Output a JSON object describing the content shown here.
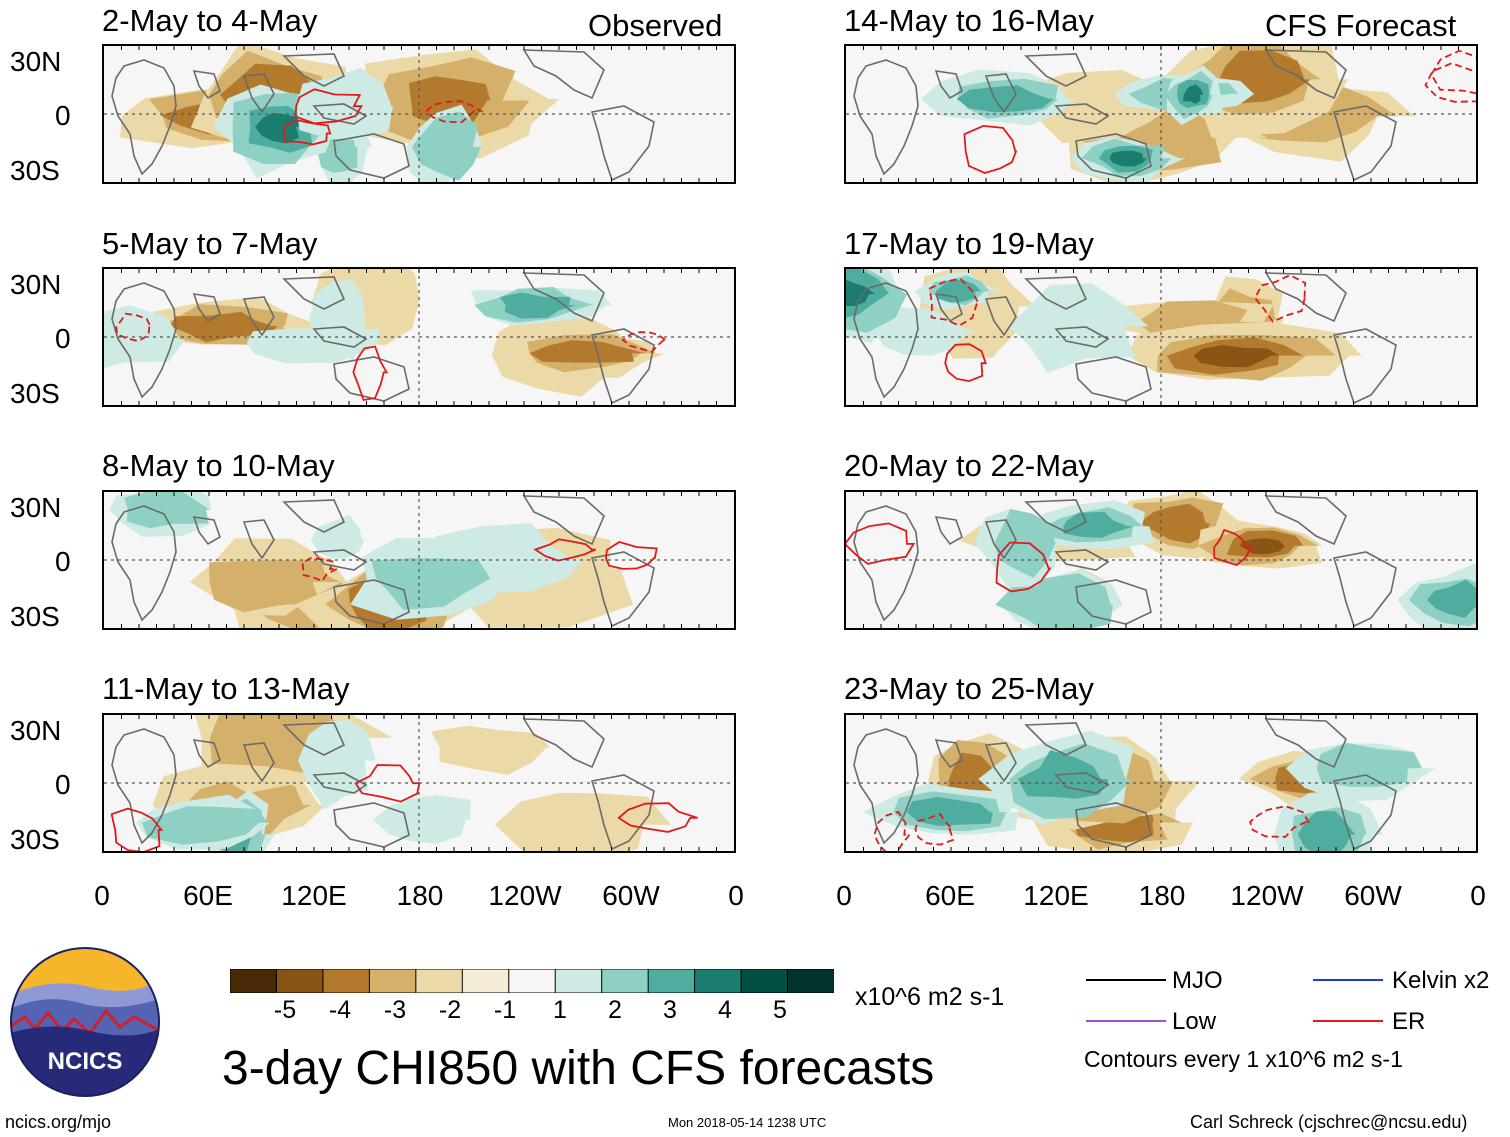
{
  "panels": [
    {
      "period": "2-May to 4-May",
      "tag": "Observed",
      "seed": 1
    },
    {
      "period": "5-May to 7-May",
      "tag": "",
      "seed": 2
    },
    {
      "period": "8-May to 10-May",
      "tag": "",
      "seed": 3
    },
    {
      "period": "11-May to 13-May",
      "tag": "",
      "seed": 4
    },
    {
      "period": "14-May to 16-May",
      "tag": "CFS Forecast",
      "seed": 5
    },
    {
      "period": "17-May to 19-May",
      "tag": "",
      "seed": 6
    },
    {
      "period": "20-May to 22-May",
      "tag": "",
      "seed": 7
    },
    {
      "period": "23-May to 25-May",
      "tag": "",
      "seed": 8
    }
  ],
  "lat_labels": [
    "30N",
    "0",
    "30S"
  ],
  "lon_labels": [
    "0",
    "60E",
    "120E",
    "180",
    "120W",
    "60W",
    "0"
  ],
  "colorbar": {
    "colors": [
      "#4a2a06",
      "#8a5414",
      "#b37a2e",
      "#d4b06a",
      "#ecd9a8",
      "#f4ecd4",
      "#f6f6f6",
      "#cdebe4",
      "#8fd0c4",
      "#4fada0",
      "#1b7d6f",
      "#004f43",
      "#00332b"
    ],
    "labels": [
      "-5",
      "-4",
      "-3",
      "-2",
      "-1",
      "1",
      "2",
      "3",
      "4",
      "5"
    ],
    "units": "x10^6 m2 s-1"
  },
  "legend": {
    "items": [
      {
        "label": "MJO",
        "color": "#000000"
      },
      {
        "label": "Kelvin x2",
        "color": "#1f3bd6"
      },
      {
        "label": "Low",
        "color": "#a24fdc"
      },
      {
        "label": "ER",
        "color": "#e01b1b"
      }
    ],
    "contours_note": "Contours every 1 x10^6 m2 s-1"
  },
  "main_title": "3-day CHI850 with CFS forecasts",
  "logo_text": "NCICS",
  "footer": {
    "url": "ncics.org/mjo",
    "timestamp": "Mon 2018-05-14 1238 UTC",
    "credit": "Carl Schreck (cjschrec@ncsu.edu)"
  }
}
